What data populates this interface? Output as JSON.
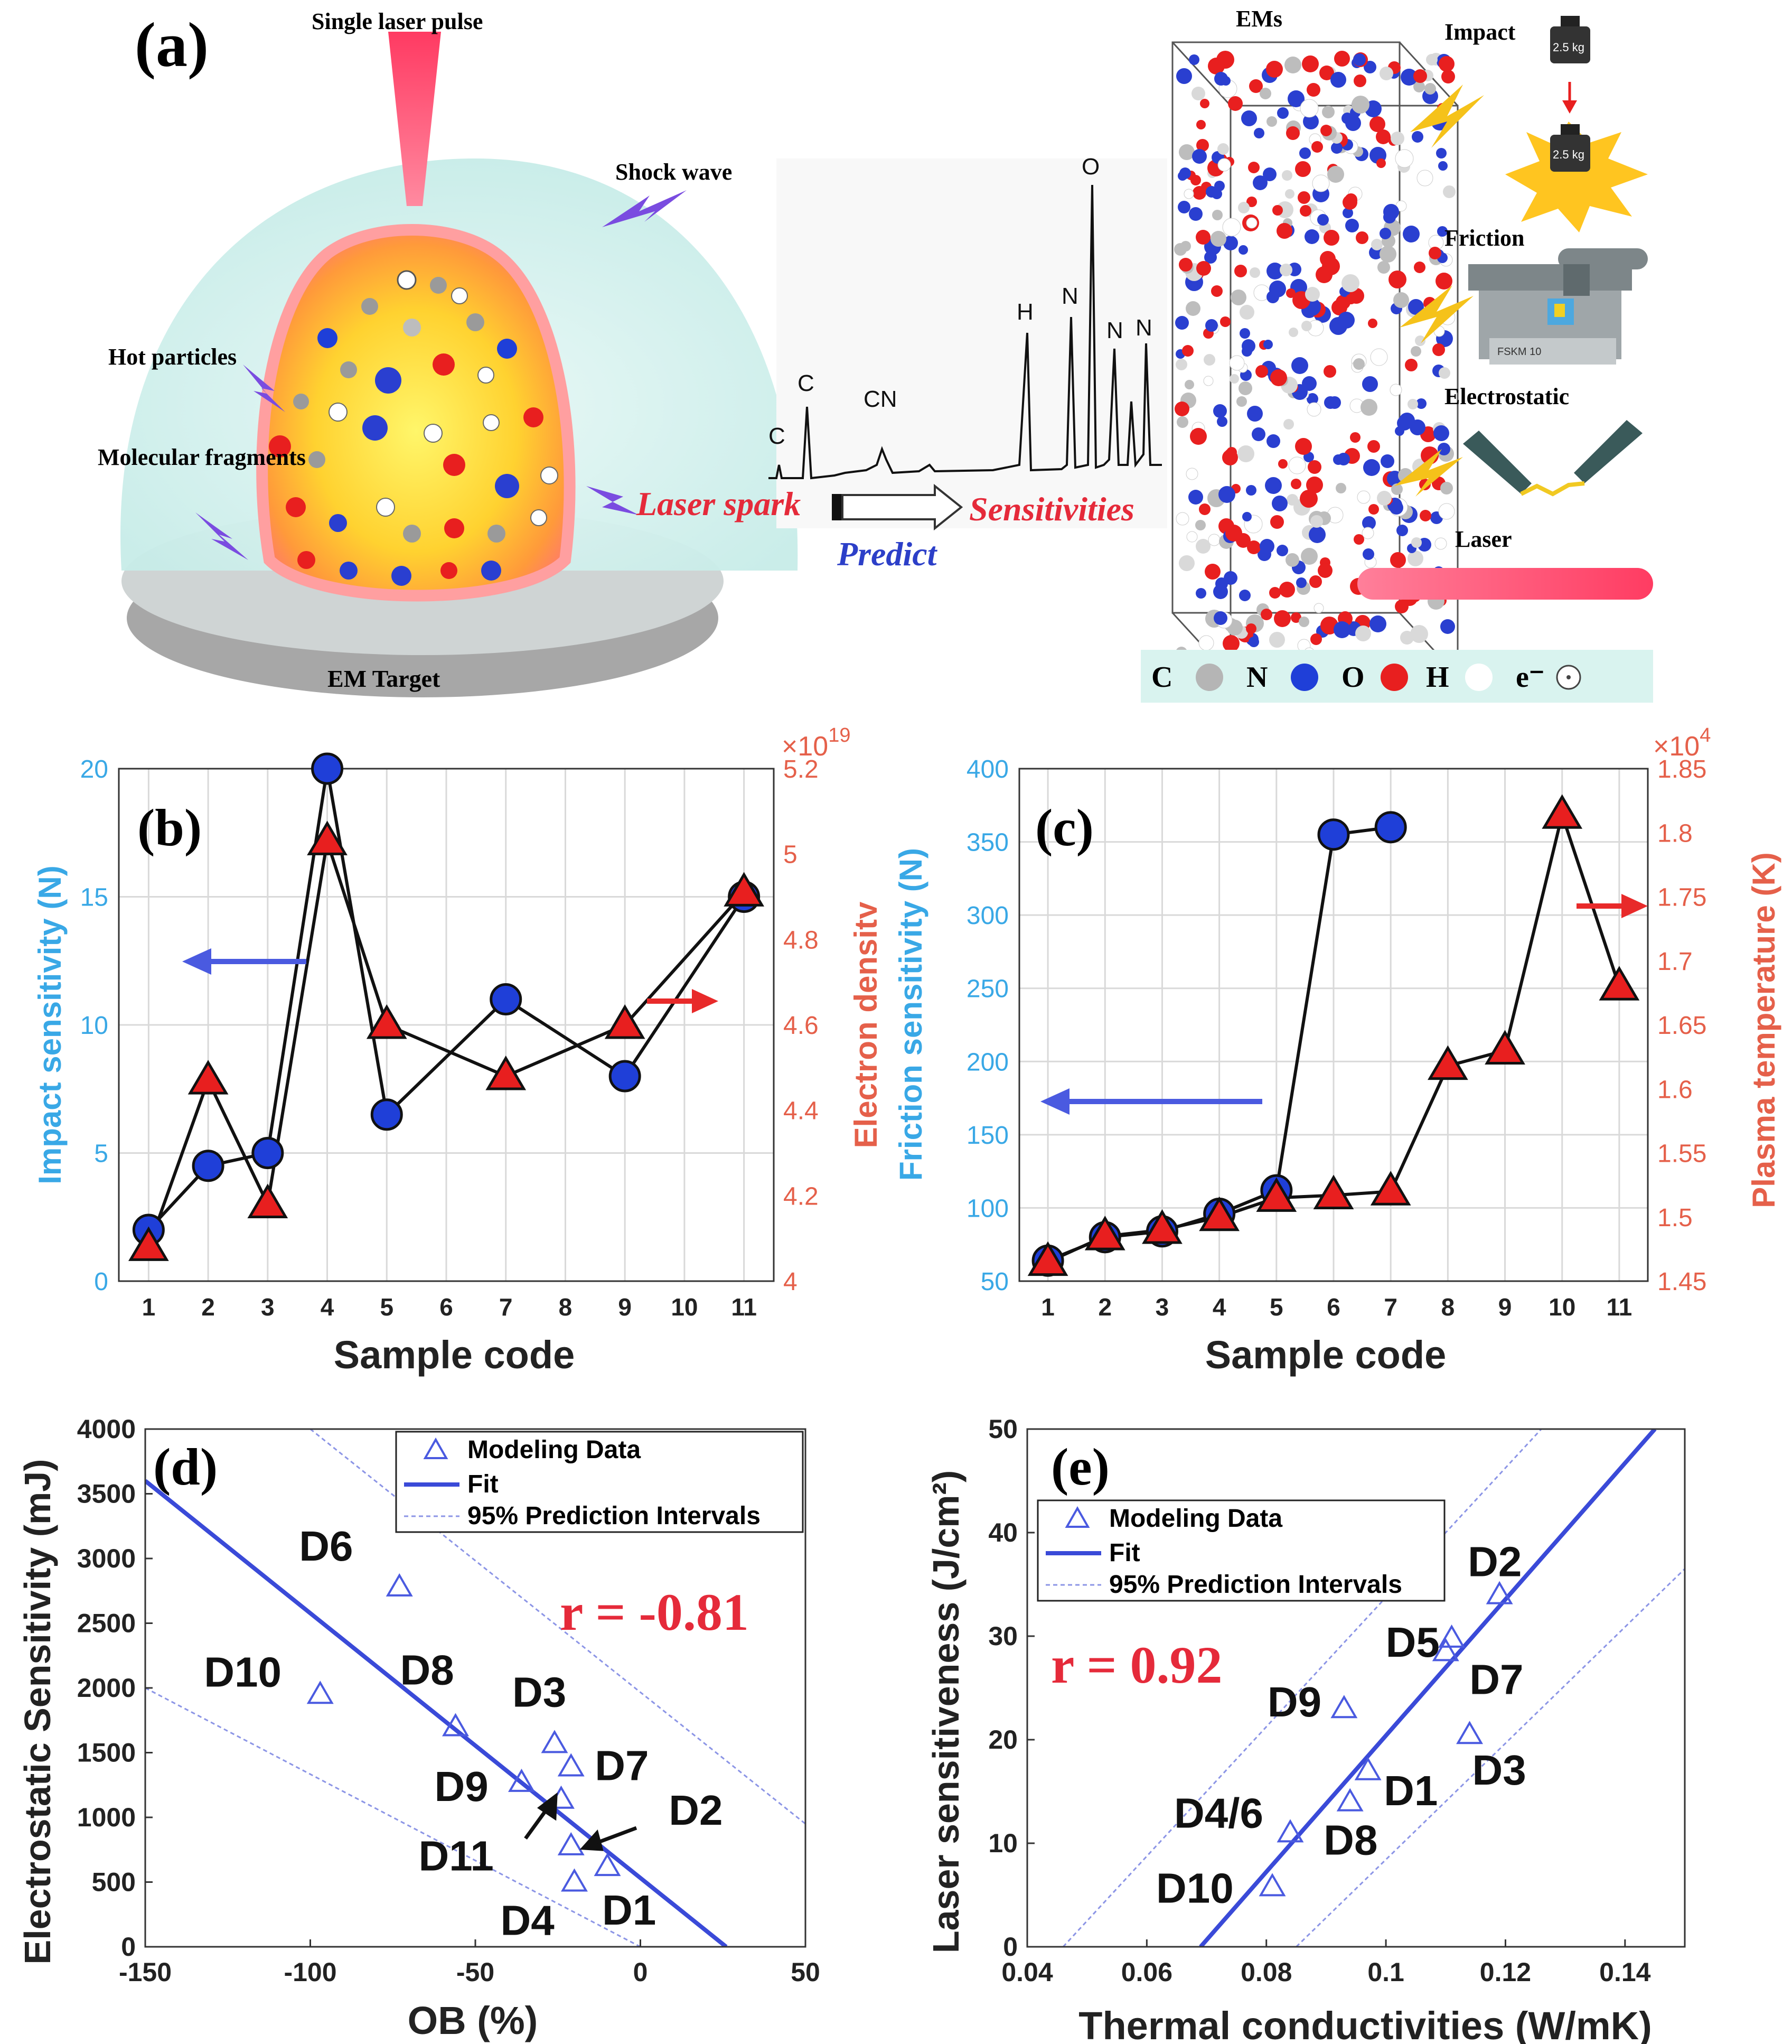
{
  "panel_a": {
    "label": "(a)",
    "laser_pulse": "Single laser pulse",
    "shock_wave": "Shock wave",
    "hot_particles": "Hot particles",
    "molecular_fragments": "Molecular fragments",
    "em_target": "EM Target",
    "laser_spark": "Laser spark",
    "sensitivities": "Sensitivities",
    "predict": "Predict",
    "ems": "EMs",
    "impact": "Impact",
    "weight": "2.5 kg",
    "friction": "Friction",
    "friction_device": "FSKM 10",
    "electrostatic": "Electrostatic",
    "laser": "Laser",
    "spectrum_peaks": [
      "C",
      "C",
      "CN",
      "H",
      "N",
      "O",
      "N",
      "N"
    ],
    "legend": [
      {
        "symbol": "C",
        "color": "#b5b5b5"
      },
      {
        "symbol": "N",
        "color": "#1f3fd8"
      },
      {
        "symbol": "O",
        "color": "#e81f1f"
      },
      {
        "symbol": "H",
        "color": "#ffffff"
      },
      {
        "symbol": "e⁻",
        "color": "#ffffff"
      }
    ]
  },
  "chart_data": [
    {
      "id": "b",
      "label": "(b)",
      "type": "line",
      "xlabel": "Sample code",
      "ylabel": "Impact sensitivity (N)",
      "y2label": "Electron density",
      "y2_multiplier": "×10",
      "y2_exponent": "19",
      "xlim": [
        0.5,
        11.5
      ],
      "ylim": [
        0,
        20
      ],
      "y2lim": [
        4.0,
        5.2
      ],
      "xticks": [
        "1",
        "2",
        "3",
        "4",
        "5",
        "6",
        "7",
        "8",
        "9",
        "10",
        "11"
      ],
      "yticks": [
        "0",
        "5",
        "10",
        "15",
        "20"
      ],
      "y2ticks": [
        "4",
        "4.2",
        "4.4",
        "4.6",
        "4.8",
        "5",
        "5.2"
      ],
      "grid": true,
      "series": [
        {
          "axis": "left",
          "marker": "circle",
          "color": "#1f3fd8",
          "x": [
            1,
            2,
            3,
            4,
            5,
            7,
            9,
            11
          ],
          "y": [
            2,
            4.5,
            5,
            20,
            6.5,
            11,
            8,
            15
          ]
        },
        {
          "axis": "right",
          "marker": "triangle",
          "color": "#e81f1f",
          "x": [
            1,
            2,
            3,
            4,
            5,
            7,
            9,
            11
          ],
          "y": [
            4.08,
            4.47,
            4.18,
            5.03,
            4.6,
            4.48,
            4.6,
            4.91
          ]
        }
      ]
    },
    {
      "id": "c",
      "label": "(c)",
      "type": "line",
      "xlabel": "Sample code",
      "ylabel": "Friction sensitivity (N)",
      "y2label": "Plasma temperature (K)",
      "y2_multiplier": "×10",
      "y2_exponent": "4",
      "xlim": [
        0.5,
        11.5
      ],
      "ylim": [
        50,
        400
      ],
      "y2lim": [
        1.45,
        1.85
      ],
      "xticks": [
        "1",
        "2",
        "3",
        "4",
        "5",
        "6",
        "7",
        "8",
        "9",
        "10",
        "11"
      ],
      "yticks": [
        "50",
        "100",
        "150",
        "200",
        "250",
        "300",
        "350",
        "400"
      ],
      "y2ticks": [
        "1.45",
        "1.5",
        "1.55",
        "1.6",
        "1.65",
        "1.7",
        "1.75",
        "1.8",
        "1.85"
      ],
      "grid": true,
      "series": [
        {
          "axis": "left",
          "marker": "circle",
          "color": "#1f3fd8",
          "x": [
            1,
            2,
            3,
            4,
            5,
            6,
            7
          ],
          "y": [
            64,
            80,
            84,
            96,
            112,
            355,
            360
          ]
        },
        {
          "axis": "right",
          "marker": "triangle",
          "color": "#e81f1f",
          "x": [
            1,
            2,
            3,
            4,
            5,
            6,
            7,
            8,
            9,
            10,
            11
          ],
          "y": [
            1.465,
            1.485,
            1.49,
            1.5,
            1.515,
            1.517,
            1.52,
            1.618,
            1.63,
            1.814,
            1.68
          ]
        }
      ]
    },
    {
      "id": "d",
      "label": "(d)",
      "type": "scatter",
      "xlabel": "OB (%)",
      "ylabel": "Electrostatic Sensitivity (mJ)",
      "xlim": [
        -150,
        50
      ],
      "ylim": [
        0,
        4000
      ],
      "xticks": [
        "-150",
        "-100",
        "-50",
        "0",
        "50"
      ],
      "yticks": [
        "0",
        "500",
        "1000",
        "1500",
        "2000",
        "2500",
        "3000",
        "3500",
        "4000"
      ],
      "grid": false,
      "annotation": "r = -0.81",
      "legend": [
        "Modeling Data",
        "Fit",
        "95% Prediction Intervals"
      ],
      "points": [
        {
          "label": "D6",
          "x": -73,
          "y": 2780
        },
        {
          "label": "D10",
          "x": -97,
          "y": 1950
        },
        {
          "label": "D8",
          "x": -56,
          "y": 1700
        },
        {
          "label": "D3",
          "x": -26,
          "y": 1570
        },
        {
          "label": "D7",
          "x": -21,
          "y": 1390
        },
        {
          "label": "D9",
          "x": -36,
          "y": 1270
        },
        {
          "label": "D11",
          "x": -24,
          "y": 1140
        },
        {
          "label": "D2",
          "x": -21,
          "y": 780
        },
        {
          "label": "D1",
          "x": -10,
          "y": 620
        },
        {
          "label": "D4",
          "x": -20,
          "y": 500
        }
      ],
      "fit": {
        "x": [
          -150,
          26
        ],
        "y": [
          3600,
          0
        ]
      },
      "upper_pi": {
        "x": [
          -100,
          50
        ],
        "y": [
          4000,
          950
        ]
      },
      "lower_pi": {
        "x": [
          -150,
          0
        ],
        "y": [
          2000,
          0
        ]
      }
    },
    {
      "id": "e",
      "label": "(e)",
      "type": "scatter",
      "xlabel": "Thermal conductivities (W/mK)",
      "ylabel": "Laser sensitiveness (J/cm²)",
      "xlim": [
        0.04,
        0.15
      ],
      "ylim": [
        0,
        50
      ],
      "xticks": [
        "0.04",
        "0.06",
        "0.08",
        "0.1",
        "0.12",
        "0.14"
      ],
      "yticks": [
        "0",
        "10",
        "20",
        "30",
        "40",
        "50"
      ],
      "grid": false,
      "annotation": "r = 0.92",
      "legend": [
        "Modeling Data",
        "Fit",
        "95% Prediction Intervals"
      ],
      "points": [
        {
          "label": "D2",
          "x": 0.119,
          "y": 34
        },
        {
          "label": "D5",
          "x": 0.111,
          "y": 29.8
        },
        {
          "label": "D7",
          "x": 0.11,
          "y": 28.5
        },
        {
          "label": "D9",
          "x": 0.093,
          "y": 23
        },
        {
          "label": "D3",
          "x": 0.114,
          "y": 20.5
        },
        {
          "label": "D1",
          "x": 0.097,
          "y": 17
        },
        {
          "label": "D8",
          "x": 0.094,
          "y": 14
        },
        {
          "label": "D4/6",
          "x": 0.084,
          "y": 11
        },
        {
          "label": "D10",
          "x": 0.081,
          "y": 5.8
        }
      ],
      "fit": {
        "x": [
          0.069,
          0.145
        ],
        "y": [
          0,
          50
        ]
      },
      "upper_pi": {
        "x": [
          0.046,
          0.126
        ],
        "y": [
          0,
          50
        ]
      },
      "lower_pi": {
        "x": [
          0.085,
          0.15
        ],
        "y": [
          0,
          36.5
        ]
      }
    }
  ]
}
